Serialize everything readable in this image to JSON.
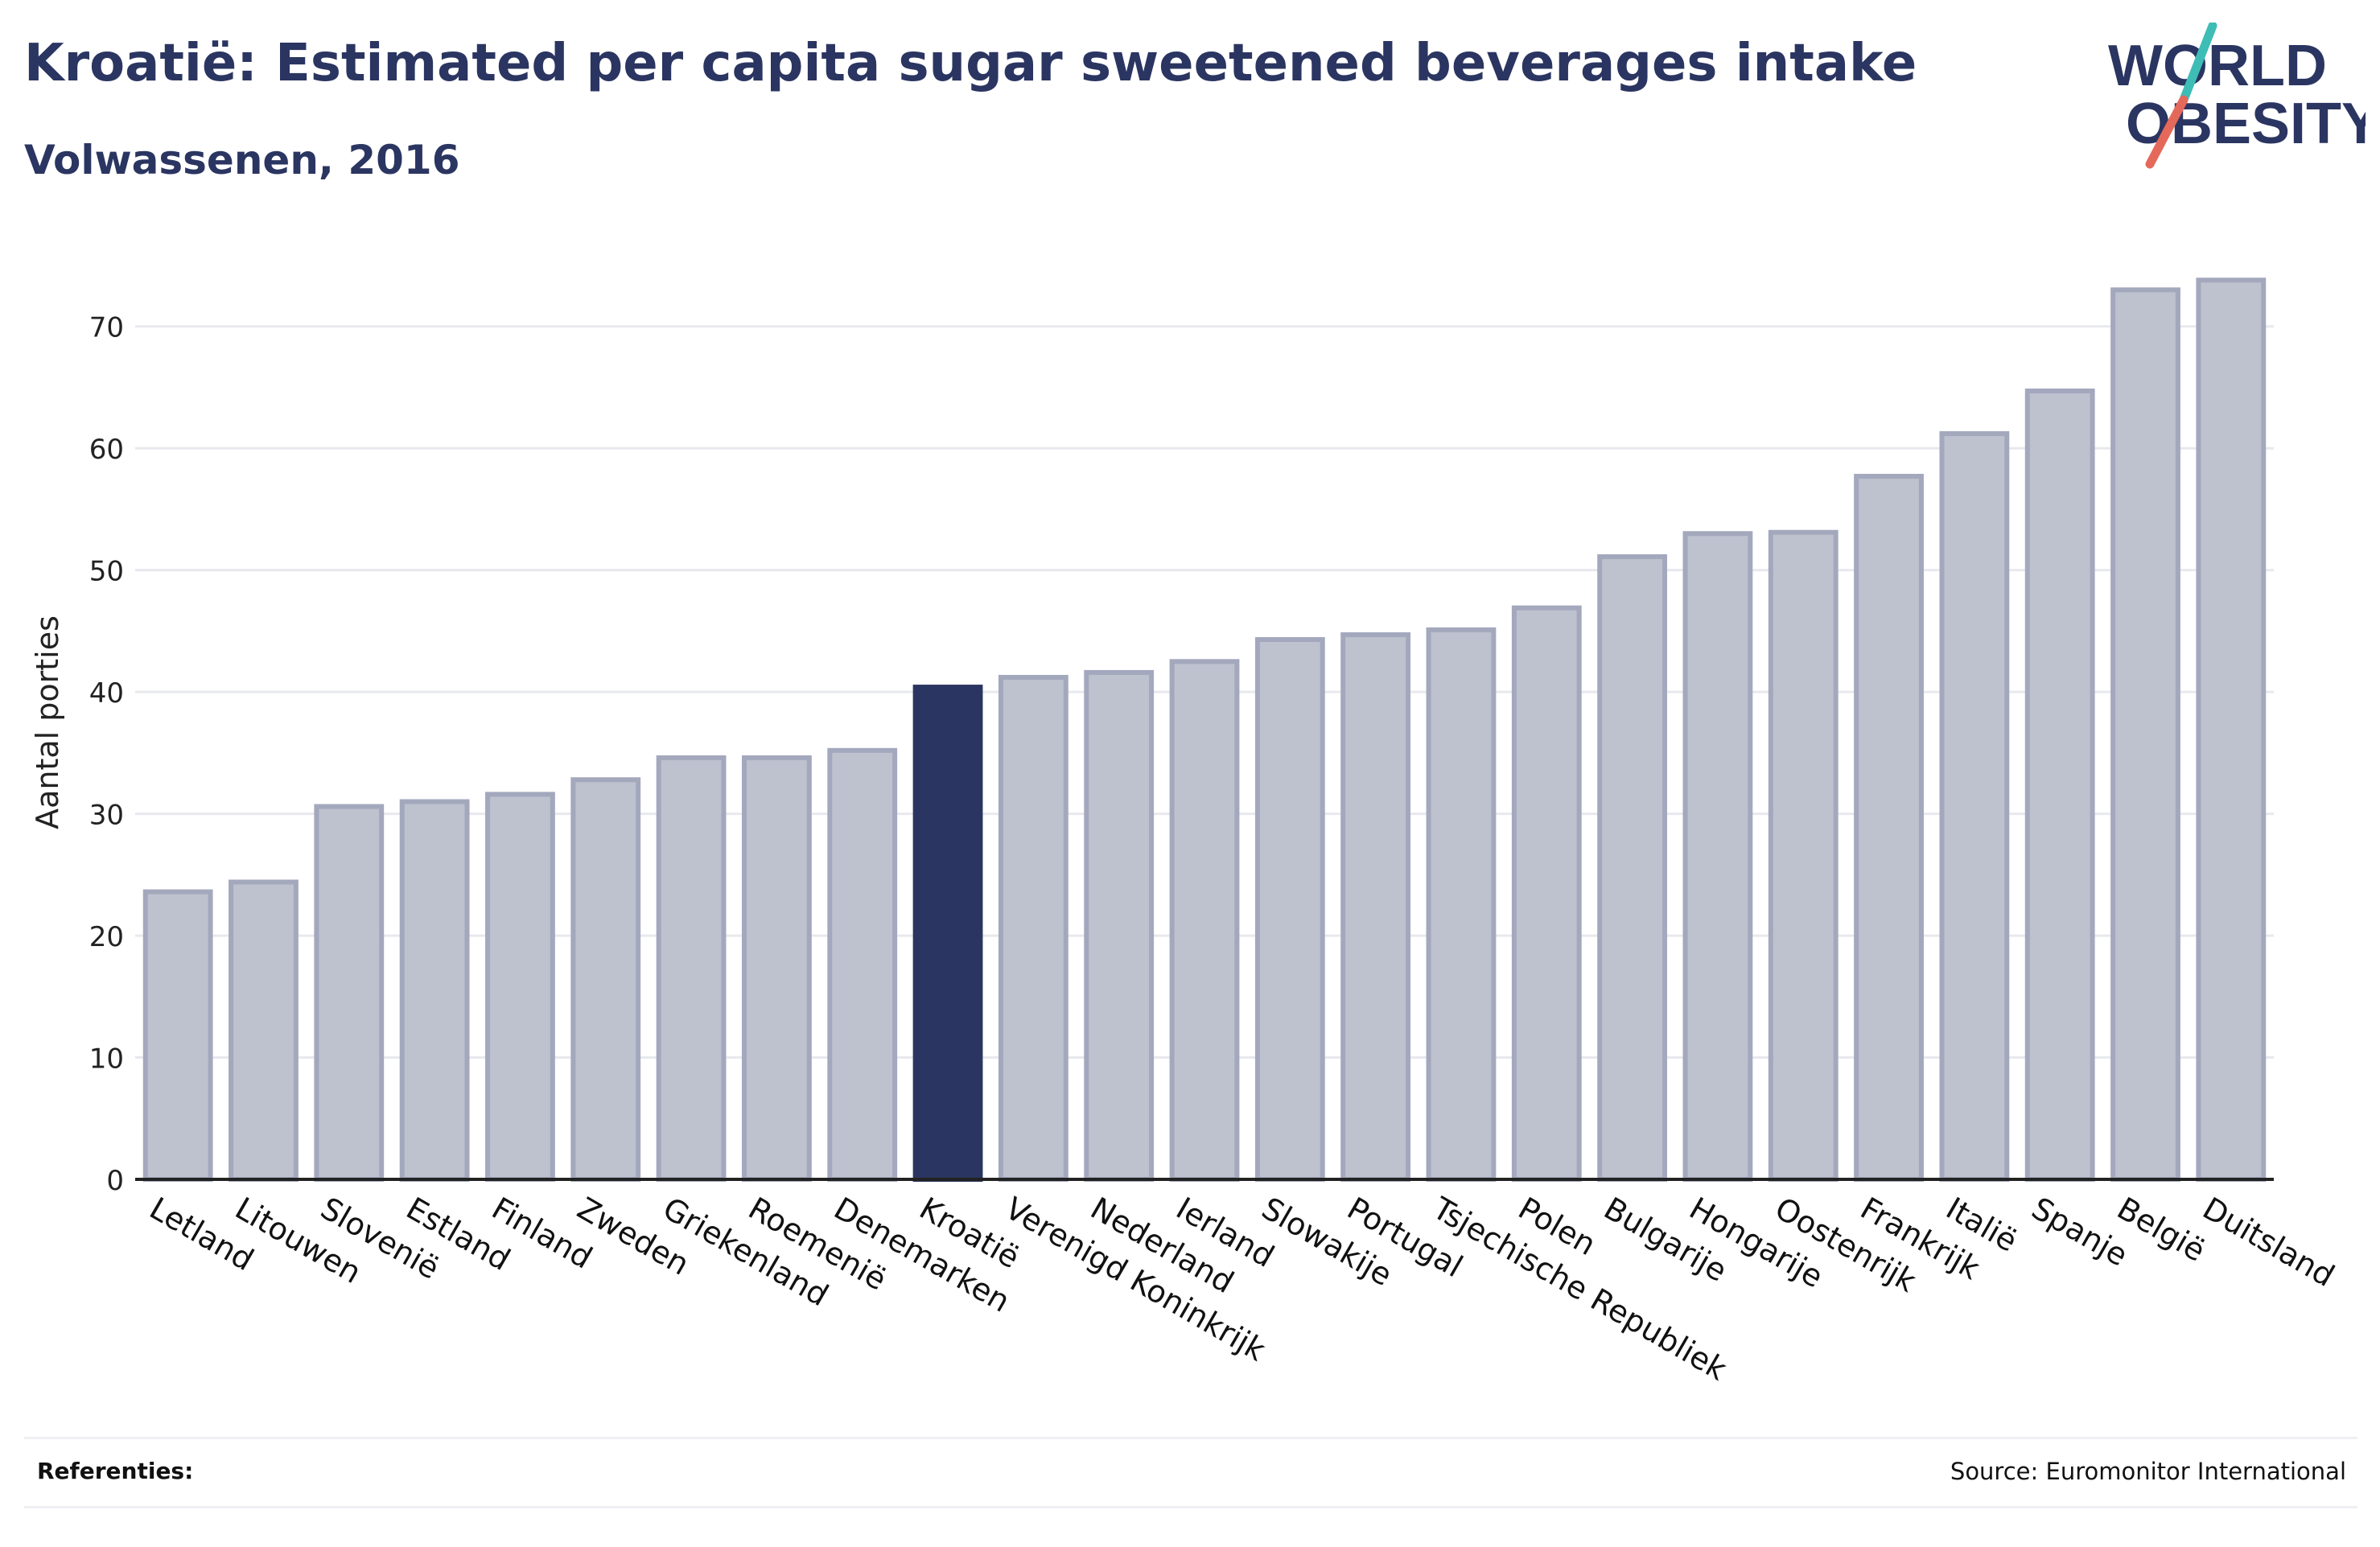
{
  "header": {
    "title": "Kroatië: Estimated per capita sugar sweetened beverages intake",
    "subtitle": "Volwassenen, 2016"
  },
  "logo": {
    "line1": "WORLD",
    "line2": "OBESITY",
    "text_color": "#2b3561",
    "slash_top_color": "#3dbdb6",
    "slash_bottom_color": "#e5695a"
  },
  "footer": {
    "references_label": "Referenties:",
    "source": "Source: Euromonitor International"
  },
  "colors": {
    "bar_fill": "#bec1ce",
    "bar_stroke": "#a3a8bd",
    "highlight": "#2b3561",
    "grid": "#e8e9ee",
    "axis": "#222222"
  },
  "chart_data": {
    "type": "bar",
    "categories": [
      "Letland",
      "Litouwen",
      "Slovenië",
      "Estland",
      "Finland",
      "Zweden",
      "Griekenland",
      "Roemenië",
      "Denemarken",
      "Kroatië",
      "Verenigd Koninkrijk",
      "Nederland",
      "Ierland",
      "Slowakije",
      "Portugal",
      "Tsjechische Republiek",
      "Polen",
      "Bulgarije",
      "Hongarije",
      "Oostenrijk",
      "Frankrijk",
      "Italië",
      "Spanje",
      "België",
      "Duitsland"
    ],
    "values": [
      23.6,
      24.4,
      30.6,
      31.0,
      31.6,
      32.8,
      34.6,
      34.6,
      35.2,
      40.4,
      41.2,
      41.6,
      42.5,
      44.3,
      44.7,
      45.1,
      46.9,
      51.1,
      53.0,
      53.1,
      57.7,
      61.2,
      64.7,
      73.0,
      73.8
    ],
    "highlight": "Kroatië",
    "ylabel": "Aantal porties",
    "ylim": [
      0,
      75
    ],
    "yticks": [
      0,
      10,
      20,
      30,
      40,
      50,
      60,
      70
    ],
    "grid": true,
    "legend": "none"
  }
}
